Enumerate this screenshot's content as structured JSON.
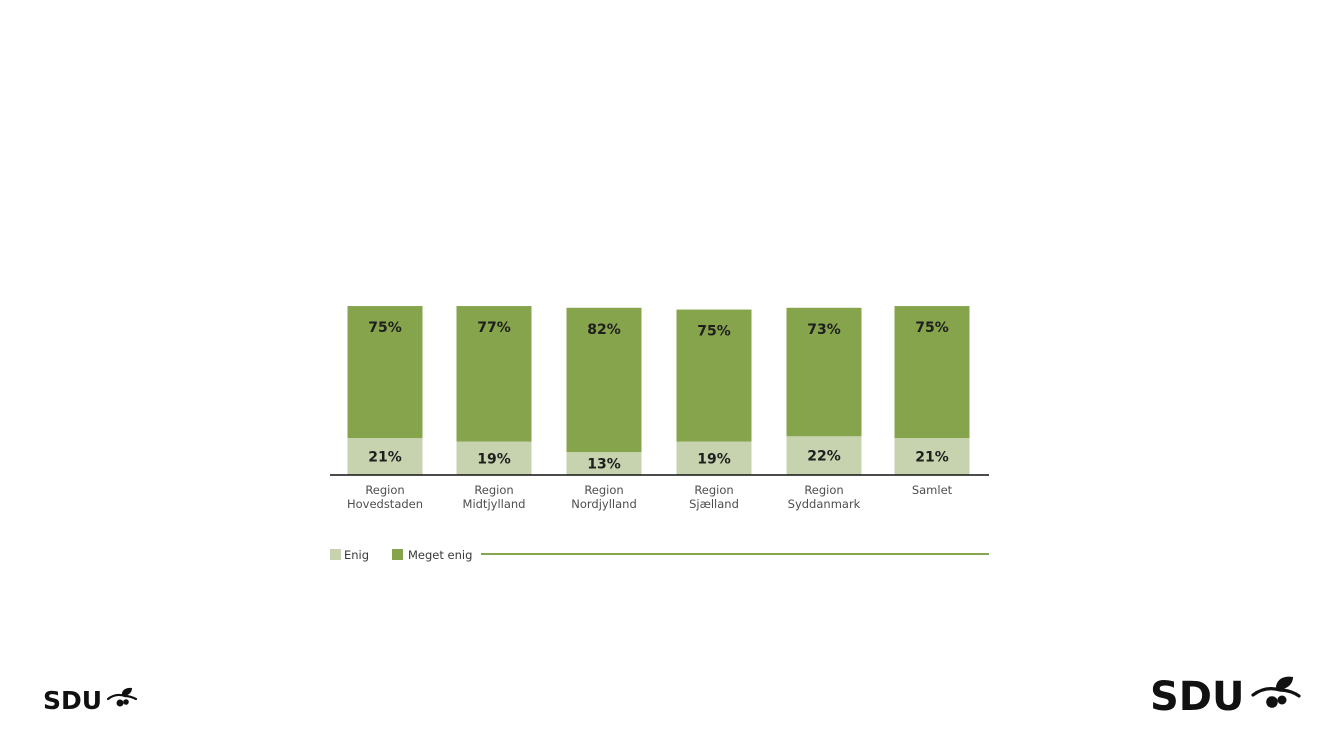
{
  "chart_data": {
    "type": "bar",
    "stacked": true,
    "categories": [
      [
        "Region",
        "Hovedstaden"
      ],
      [
        "Region",
        "Midtjylland"
      ],
      [
        "Region",
        "Nordjylland"
      ],
      [
        "Region",
        "Sjælland"
      ],
      [
        "Region",
        "Syddanmark"
      ],
      [
        "Samlet"
      ]
    ],
    "series": [
      {
        "name": "Enig",
        "values": [
          21,
          19,
          13,
          19,
          22,
          21
        ],
        "labels": [
          "21%",
          "19%",
          "13%",
          "19%",
          "22%",
          "21%"
        ],
        "color": "#c6d3ae"
      },
      {
        "name": "Meget enig",
        "values": [
          75,
          77,
          82,
          75,
          73,
          75
        ],
        "labels": [
          "75%",
          "77%",
          "82%",
          "75%",
          "73%",
          "75%"
        ],
        "color": "#86a44b"
      }
    ],
    "title": "",
    "xlabel": "",
    "ylabel": "",
    "ylim": [
      0,
      100
    ],
    "grid": false,
    "legend_position": "bottom-left",
    "axis_color": "#111111",
    "legend_line_color": "#86a44b"
  },
  "branding": {
    "logo_small_text": "SDU",
    "logo_large_text": "SDU",
    "logo_color": "#111111"
  }
}
